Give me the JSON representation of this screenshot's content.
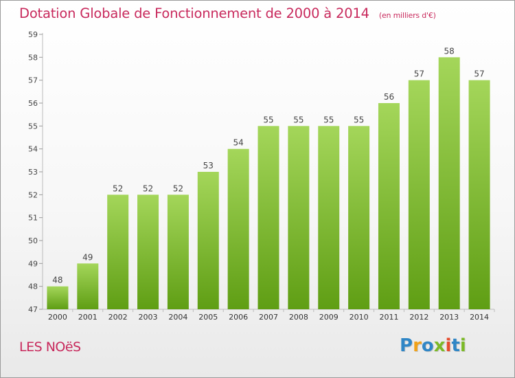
{
  "header": {
    "title": "Dotation Globale de Fonctionnement de 2000 à 2014",
    "unit": "(en milliers d'€)"
  },
  "footer": {
    "commune": "LES NOëS",
    "logo_letters": [
      "P",
      "r",
      "o",
      "x",
      "i",
      "t",
      "i"
    ]
  },
  "colors": {
    "title": "#c8295c",
    "bar_top": "#a4d65a",
    "bar_bottom": "#5f9e14",
    "logo": [
      "#2f86c6",
      "#f0a21a",
      "#2f86c6",
      "#7cb928",
      "#e64b2c",
      "#2f86c6",
      "#7cb928"
    ]
  },
  "chart_data": {
    "type": "bar",
    "categories": [
      "2000",
      "2001",
      "2002",
      "2003",
      "2004",
      "2005",
      "2006",
      "2007",
      "2008",
      "2009",
      "2010",
      "2011",
      "2012",
      "2013",
      "2014"
    ],
    "values": [
      48,
      49,
      52,
      52,
      52,
      53,
      54,
      55,
      55,
      55,
      55,
      56,
      57,
      58,
      57
    ],
    "data_labels": [
      "48",
      "49",
      "52",
      "52",
      "52",
      "53",
      "54",
      "55",
      "55",
      "55",
      "55",
      "56",
      "57",
      "58",
      "57"
    ],
    "title": "Dotation Globale de Fonctionnement de 2000 à 2014",
    "subtitle": "(en milliers d'€)",
    "ylim": [
      47,
      59
    ],
    "yticks": [
      "47",
      "48",
      "49",
      "50",
      "51",
      "52",
      "53",
      "54",
      "55",
      "56",
      "57",
      "58",
      "59"
    ],
    "grid": false,
    "legend": "none"
  }
}
